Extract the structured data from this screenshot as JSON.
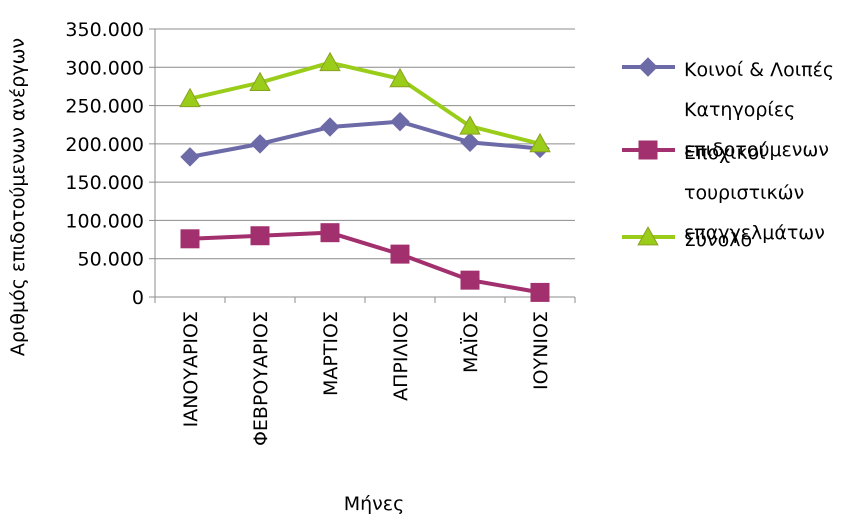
{
  "chart_data": {
    "type": "line",
    "xlabel": "Μήνες",
    "ylabel": "Αριθμός επιδοτούμενων ανέργων",
    "categories": [
      "ΙΑΝΟΥΑΡΙΟΣ",
      "ΦΕΒΡΟΥΑΡΙΟΣ",
      "ΜΑΡΤΙΟΣ",
      "ΑΠΡΙΛΙΟΣ",
      "ΜΑΪΟΣ",
      "ΙΟΥΝΙΟΣ"
    ],
    "ylim": [
      0,
      350000
    ],
    "yticks": [
      0,
      50000,
      100000,
      150000,
      200000,
      250000,
      300000,
      350000
    ],
    "ytick_labels": [
      "0",
      "50.000",
      "100.000",
      "150.000",
      "200.000",
      "250.000",
      "300.000",
      "350.000"
    ],
    "grid": "horizontal",
    "legend_position": "right",
    "series": [
      {
        "name": "Κοινοί & Λοιπές Κατηγορίες επιδοτούμενων",
        "legend_lines": [
          "Κοινοί & Λοιπές",
          "Κατηγορίες",
          "επιδοτούμενων"
        ],
        "marker": "diamond",
        "color": "#6d6aa8",
        "values": [
          183000,
          200000,
          222000,
          229000,
          202000,
          194000
        ]
      },
      {
        "name": "Εποχικοί τουριστικών επαγγελμάτων",
        "legend_lines": [
          "Εποχικοί",
          "τουριστικών",
          "επαγγελμάτων"
        ],
        "marker": "square",
        "color": "#a3306e",
        "values": [
          76000,
          80000,
          84000,
          56000,
          22000,
          6000
        ]
      },
      {
        "name": "Σύνολο",
        "legend_lines": [
          "Σύνολο"
        ],
        "marker": "triangle",
        "color": "#9acd1a",
        "values": [
          259000,
          280000,
          306000,
          285000,
          223000,
          200000
        ]
      }
    ]
  }
}
